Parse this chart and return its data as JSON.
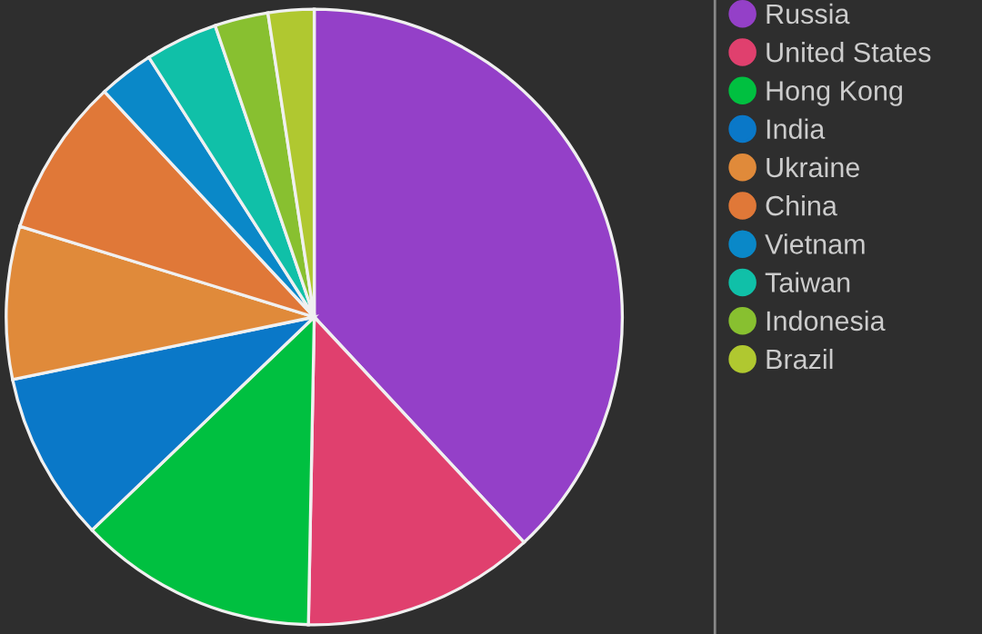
{
  "chart_data": {
    "type": "pie",
    "categories": [
      "Russia",
      "United States",
      "Hong Kong",
      "India",
      "Ukraine",
      "China",
      "Vietnam",
      "Taiwan",
      "Indonesia",
      "Brazil"
    ],
    "values": [
      38.0,
      12.2,
      12.5,
      8.9,
      8.0,
      8.3,
      2.9,
      3.8,
      2.8,
      2.4
    ],
    "colors": [
      "#9440c8",
      "#e0406e",
      "#00c040",
      "#0a78c8",
      "#e08a3a",
      "#e07838",
      "#0a88c8",
      "#10c0a8",
      "#88c030",
      "#b0c830"
    ],
    "legend": "right"
  }
}
